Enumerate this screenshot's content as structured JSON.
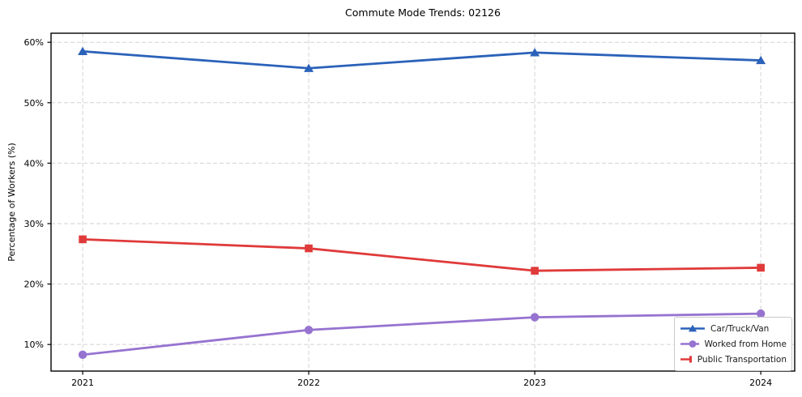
{
  "chart_data": {
    "type": "line",
    "title": "Commute Mode Trends: 02126",
    "xlabel": "",
    "ylabel": "Percentage of Workers (%)",
    "categories": [
      "2021",
      "2022",
      "2023",
      "2024"
    ],
    "x": [
      2021,
      2022,
      2023,
      2024
    ],
    "y_ticks": [
      10,
      20,
      30,
      40,
      50,
      60
    ],
    "y_tick_labels": [
      "10%",
      "20%",
      "30%",
      "40%",
      "50%",
      "60%"
    ],
    "xlim": [
      2020.86,
      2024.15
    ],
    "ylim": [
      5.6,
      61.5
    ],
    "grid": true,
    "grid_color": "#d2d2d2",
    "axis_color": "#000000",
    "legend_position": "lower right",
    "series": [
      {
        "name": "Car/Truck/Van",
        "color": "#2b62b9",
        "marker": "triangle-up",
        "values": [
          58.5,
          55.7,
          58.3,
          57.0
        ]
      },
      {
        "name": "Worked from Home",
        "color": "#9673d0",
        "marker": "circle",
        "values": [
          8.3,
          12.4,
          14.5,
          15.1
        ]
      },
      {
        "name": "Public Transportation",
        "color": "#e03a3a",
        "marker": "square",
        "values": [
          27.4,
          25.9,
          22.2,
          22.7
        ]
      }
    ]
  }
}
